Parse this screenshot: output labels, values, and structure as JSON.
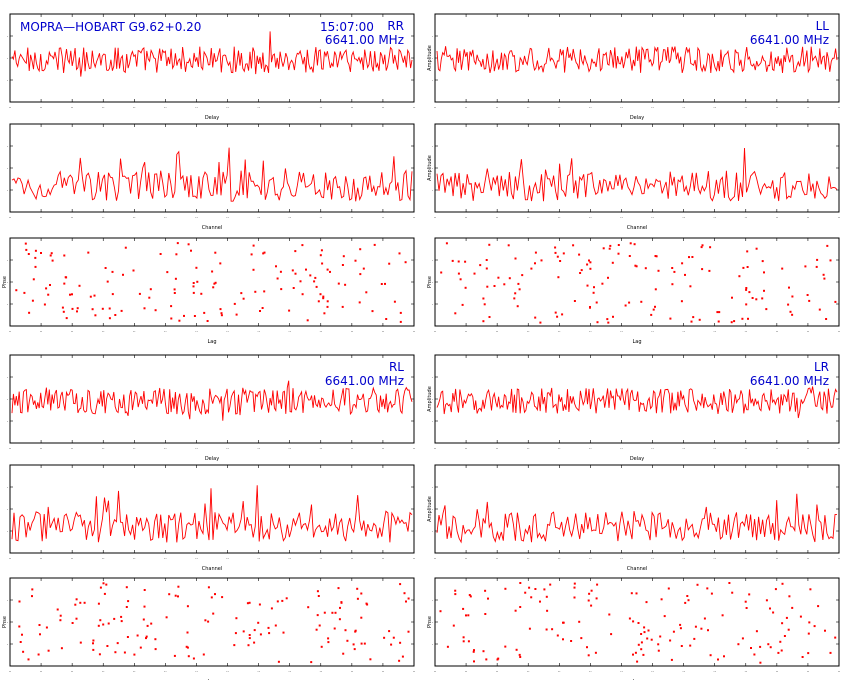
{
  "header": {
    "baseline_label": "MOPRA—HOBART  G9.62+0.20",
    "time_label": "15:07:00"
  },
  "colors": {
    "trace": "#ff0000",
    "label": "#0000cc",
    "axis": "#000000"
  },
  "axis_titles": {
    "delay": "Delay",
    "channel": "Channel",
    "amplitude": "Amplitude",
    "phase": "Phse",
    "lag": "Lag"
  },
  "chart_data": [
    {
      "id": "rr-delay",
      "type": "line",
      "stokes": "RR",
      "freq": "6641.00 MHz",
      "xlabel": "Delay",
      "ylabel": ""
    },
    {
      "id": "rr-channel",
      "type": "line",
      "xlabel": "Channel",
      "ylabel": ""
    },
    {
      "id": "rr-phase",
      "type": "scatter",
      "xlabel": "Lag",
      "ylabel": "Phse"
    },
    {
      "id": "ll-delay",
      "type": "line",
      "stokes": "LL",
      "freq": "6641.00 MHz",
      "xlabel": "Delay",
      "ylabel": "Amplitude"
    },
    {
      "id": "ll-channel",
      "type": "line",
      "xlabel": "Channel",
      "ylabel": "Amplitude"
    },
    {
      "id": "ll-phase",
      "type": "scatter",
      "xlabel": "Lag",
      "ylabel": "Phse"
    },
    {
      "id": "rl-delay",
      "type": "line",
      "stokes": "RL",
      "freq": "6641.00 MHz",
      "xlabel": "Delay",
      "ylabel": ""
    },
    {
      "id": "rl-channel",
      "type": "line",
      "xlabel": "Channel",
      "ylabel": ""
    },
    {
      "id": "rl-phase",
      "type": "scatter",
      "xlabel": "Lag",
      "ylabel": "Phse"
    },
    {
      "id": "lr-delay",
      "type": "line",
      "stokes": "LR",
      "freq": "6641.00 MHz",
      "xlabel": "Delay",
      "ylabel": "Amplitude"
    },
    {
      "id": "lr-channel",
      "type": "line",
      "xlabel": "Channel",
      "ylabel": "Amplitude"
    },
    {
      "id": "lr-phase",
      "type": "scatter",
      "xlabel": "Lag",
      "ylabel": "Phse"
    }
  ]
}
